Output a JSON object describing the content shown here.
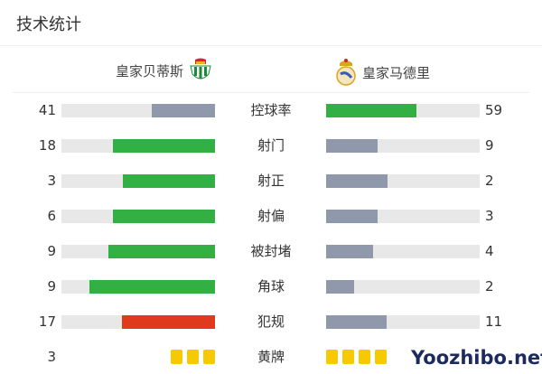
{
  "header": {
    "title": "技术统计"
  },
  "teams": {
    "home": {
      "name": "皇家贝蒂斯",
      "logo_icon": "real-betis-crest-icon"
    },
    "away": {
      "name": "皇家马德里",
      "logo_icon": "real-madrid-crest-icon"
    }
  },
  "colors": {
    "leader": "#33b044",
    "trailer": "#9099ab",
    "fouls_leader": "#e03a1e",
    "track": "#e8e8e8",
    "yellow_card": "#f8c800"
  },
  "stats": [
    {
      "label": "控球率",
      "home": "41",
      "away": "59",
      "home_fraction": 0.41,
      "away_fraction": 0.59,
      "home_color": "#9099ab",
      "away_color": "#33b044"
    },
    {
      "label": "射门",
      "home": "18",
      "away": "9",
      "home_fraction": 0.667,
      "away_fraction": 0.333,
      "home_color": "#33b044",
      "away_color": "#9099ab"
    },
    {
      "label": "射正",
      "home": "3",
      "away": "2",
      "home_fraction": 0.6,
      "away_fraction": 0.4,
      "home_color": "#33b044",
      "away_color": "#9099ab"
    },
    {
      "label": "射偏",
      "home": "6",
      "away": "3",
      "home_fraction": 0.667,
      "away_fraction": 0.333,
      "home_color": "#33b044",
      "away_color": "#9099ab"
    },
    {
      "label": "被封堵",
      "home": "9",
      "away": "4",
      "home_fraction": 0.692,
      "away_fraction": 0.308,
      "home_color": "#33b044",
      "away_color": "#9099ab"
    },
    {
      "label": "角球",
      "home": "9",
      "away": "2",
      "home_fraction": 0.818,
      "away_fraction": 0.182,
      "home_color": "#33b044",
      "away_color": "#9099ab"
    },
    {
      "label": "犯规",
      "home": "17",
      "away": "11",
      "home_fraction": 0.607,
      "away_fraction": 0.393,
      "home_color": "#e03a1e",
      "away_color": "#9099ab"
    }
  ],
  "yellow_cards": {
    "label": "黄牌",
    "home": "3",
    "home_cards": 3,
    "away_cards": 4
  },
  "watermark": "Yoozhibo.net"
}
